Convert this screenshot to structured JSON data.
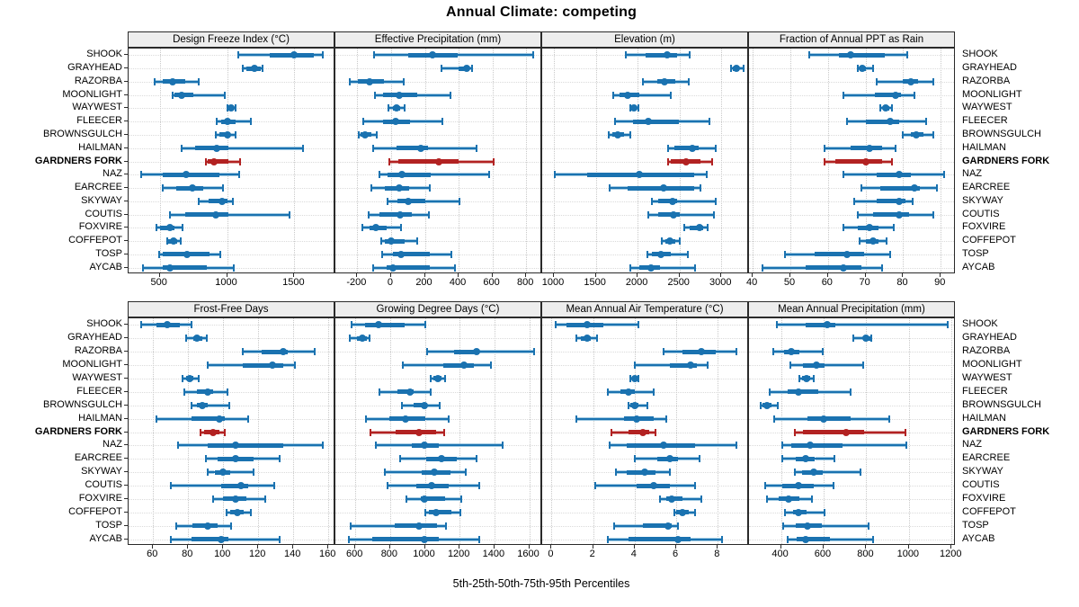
{
  "title": "Annual Climate: competing",
  "caption": "5th-25th-50th-75th-95th Percentiles",
  "percentile_labels": [
    "5th",
    "25th",
    "50th",
    "75th",
    "95th"
  ],
  "sites": [
    "SHOOK",
    "GRAYHEAD",
    "RAZORBA",
    "MOONLIGHT",
    "WAYWEST",
    "FLEECER",
    "BROWNSGULCH",
    "HAILMAN",
    "GARDNERS FORK",
    "NAZ",
    "EARCREE",
    "SKYWAY",
    "COUTIS",
    "FOXVIRE",
    "COFFEPOT",
    "TOSP",
    "AYCAB"
  ],
  "highlight_site": "GARDNERS FORK",
  "colors": {
    "series": "#1a72b0",
    "series_light": "#a3cbe3",
    "highlight": "#b22222",
    "highlight_light": "#dfa9a7",
    "grid": "#c9c9c9",
    "row_guide": "#dadada",
    "strip_bg": "#ededed",
    "border": "#2a2a2a"
  },
  "chart_data": {
    "type": "dotplot-interval",
    "orientation": "horizontal",
    "grid": "dotted",
    "legend_position": "none",
    "note": "Each row shows 5th-25th-50th-75th-95th percentiles: thin capped line 5th-95th, light band 5th-25th and 75th-95th, thick bar 25th-75th, dot at 50th",
    "panels": [
      {
        "key": "dfi",
        "title": "Design Freeze Index (°C)",
        "group": "top",
        "col": 0,
        "xlim": [
          268,
          1805
        ],
        "ticks": [
          500,
          1000,
          1500
        ],
        "values": [
          [
            1080,
            1320,
            1495,
            1645,
            1710
          ],
          [
            1120,
            1145,
            1205,
            1250,
            1265
          ],
          [
            465,
            520,
            595,
            690,
            790
          ],
          [
            595,
            610,
            665,
            750,
            980
          ],
          [
            1005,
            1010,
            1030,
            1050,
            1060
          ],
          [
            925,
            955,
            1005,
            1065,
            1180
          ],
          [
            915,
            945,
            1000,
            1020,
            1065
          ],
          [
            665,
            760,
            920,
            1010,
            1565
          ],
          [
            840,
            855,
            905,
            1010,
            1095
          ],
          [
            360,
            520,
            695,
            945,
            1090
          ],
          [
            520,
            620,
            740,
            820,
            970
          ],
          [
            790,
            865,
            960,
            1000,
            1045
          ],
          [
            575,
            690,
            915,
            1010,
            1465
          ],
          [
            475,
            505,
            575,
            610,
            670
          ],
          [
            555,
            565,
            600,
            630,
            655
          ],
          [
            495,
            520,
            705,
            870,
            950
          ],
          [
            375,
            520,
            575,
            850,
            1050
          ]
        ]
      },
      {
        "key": "ep",
        "title": "Effective Precipitation (mm)",
        "group": "top",
        "col": 1,
        "xlim": [
          -330,
          895
        ],
        "ticks": [
          -200,
          0,
          200,
          400,
          600,
          800
        ],
        "values": [
          [
            -100,
            100,
            245,
            395,
            840
          ],
          [
            300,
            400,
            445,
            465,
            480
          ],
          [
            -245,
            -195,
            -125,
            -40,
            75
          ],
          [
            -95,
            -50,
            50,
            155,
            350
          ],
          [
            -15,
            10,
            30,
            55,
            80
          ],
          [
            -165,
            -50,
            25,
            110,
            305
          ],
          [
            -190,
            -180,
            -155,
            -115,
            -85
          ],
          [
            -105,
            30,
            175,
            220,
            505
          ],
          [
            -10,
            45,
            280,
            400,
            605
          ],
          [
            -70,
            -20,
            65,
            235,
            580
          ],
          [
            -115,
            -35,
            50,
            105,
            230
          ],
          [
            -20,
            35,
            100,
            205,
            405
          ],
          [
            -135,
            -70,
            55,
            125,
            225
          ],
          [
            -170,
            -130,
            -90,
            -25,
            60
          ],
          [
            -60,
            -35,
            0,
            80,
            155
          ],
          [
            -55,
            10,
            60,
            230,
            355
          ],
          [
            -105,
            -25,
            10,
            230,
            380
          ]
        ]
      },
      {
        "key": "elev",
        "title": "Elevation (m)",
        "group": "top",
        "col": 2,
        "xlim": [
          860,
          3330
        ],
        "ticks": [
          1000,
          1500,
          2000,
          2500,
          3000
        ],
        "values": [
          [
            1860,
            2090,
            2350,
            2470,
            2625
          ],
          [
            3115,
            3140,
            3175,
            3215,
            3265
          ],
          [
            2065,
            2230,
            2320,
            2450,
            2610
          ],
          [
            1710,
            1785,
            1880,
            2025,
            2395
          ],
          [
            1915,
            1935,
            1960,
            1985,
            2005
          ],
          [
            1730,
            1950,
            2130,
            2490,
            2855
          ],
          [
            1655,
            1695,
            1765,
            1840,
            1915
          ],
          [
            2360,
            2435,
            2650,
            2730,
            2930
          ],
          [
            2360,
            2400,
            2580,
            2750,
            2890
          ],
          [
            1005,
            1395,
            2025,
            2670,
            2820
          ],
          [
            1665,
            1880,
            2305,
            2670,
            2755
          ],
          [
            2175,
            2250,
            2420,
            2470,
            2930
          ],
          [
            2130,
            2250,
            2430,
            2505,
            2910
          ],
          [
            2560,
            2620,
            2740,
            2785,
            2840
          ],
          [
            2285,
            2330,
            2385,
            2450,
            2505
          ],
          [
            2120,
            2175,
            2275,
            2395,
            2600
          ],
          [
            1915,
            2025,
            2155,
            2265,
            2690
          ]
        ]
      },
      {
        "key": "fr",
        "title": "Fraction of Annual PPT as Rain",
        "group": "top",
        "col": 3,
        "xlim": [
          39,
          94
        ],
        "ticks": [
          40,
          50,
          60,
          70,
          80,
          90
        ],
        "values": [
          [
            55,
            63,
            66,
            75,
            81
          ],
          [
            68,
            68.5,
            69.2,
            70.1,
            72
          ],
          [
            73,
            80,
            82,
            84,
            88
          ],
          [
            64,
            72.5,
            78,
            79.5,
            83
          ],
          [
            74,
            74.8,
            75.3,
            76.2,
            77
          ],
          [
            65,
            70,
            76.5,
            79,
            86
          ],
          [
            80,
            82,
            83.5,
            85.5,
            88
          ],
          [
            59,
            66,
            71,
            74.5,
            78
          ],
          [
            59,
            62,
            70,
            74.5,
            77
          ],
          [
            64,
            73,
            79,
            82,
            91
          ],
          [
            69,
            74,
            83,
            84.5,
            89
          ],
          [
            67,
            73,
            79,
            80.5,
            82.5
          ],
          [
            68,
            72,
            79,
            81.5,
            88
          ],
          [
            64,
            68,
            71,
            73.5,
            77.5
          ],
          [
            68.5,
            70,
            72,
            73.5,
            75.5
          ],
          [
            48.5,
            56.5,
            65,
            69.5,
            76.5
          ],
          [
            42.5,
            54,
            64,
            69,
            74.5
          ]
        ]
      },
      {
        "key": "ffd",
        "title": "Frost-Free Days",
        "group": "bottom",
        "col": 0,
        "xlim": [
          46,
          164
        ],
        "ticks": [
          60,
          80,
          100,
          120,
          140,
          160
        ],
        "values": [
          [
            53,
            62,
            68,
            75,
            82
          ],
          [
            79,
            83,
            85,
            88,
            90.5
          ],
          [
            111,
            122,
            134,
            137,
            152
          ],
          [
            91,
            111,
            128,
            134,
            141
          ],
          [
            77,
            79,
            81,
            83,
            86
          ],
          [
            78,
            85,
            91,
            94,
            102.5
          ],
          [
            82,
            85,
            88,
            91,
            103.5
          ],
          [
            62,
            82,
            98,
            101,
            114
          ],
          [
            87,
            89,
            94,
            98,
            101
          ],
          [
            74,
            91,
            107,
            134,
            157
          ],
          [
            90,
            97,
            107,
            117.5,
            132
          ],
          [
            91,
            95,
            100,
            104,
            117.5
          ],
          [
            70,
            99,
            110,
            114,
            129
          ],
          [
            94,
            100,
            107,
            113,
            124
          ],
          [
            102,
            104,
            108,
            111.5,
            116
          ],
          [
            73,
            82.5,
            91,
            97,
            104.5
          ],
          [
            70,
            82,
            99,
            103,
            132
          ]
        ]
      },
      {
        "key": "gdd",
        "title": "Growing Degree Days (°C)",
        "group": "bottom",
        "col": 1,
        "xlim": [
          485,
          1675
        ],
        "ticks": [
          600,
          800,
          1000,
          1200,
          1400,
          1600
        ],
        "values": [
          [
            580,
            655,
            735,
            885,
            1000
          ],
          [
            570,
            610,
            640,
            665,
            680
          ],
          [
            1015,
            1170,
            1295,
            1315,
            1630
          ],
          [
            875,
            1105,
            1225,
            1280,
            1380
          ],
          [
            1035,
            1050,
            1075,
            1095,
            1115
          ],
          [
            740,
            840,
            915,
            935,
            1035
          ],
          [
            870,
            935,
            995,
            1015,
            1085
          ],
          [
            660,
            795,
            890,
            1005,
            1135
          ],
          [
            685,
            830,
            965,
            1065,
            1110
          ],
          [
            720,
            925,
            995,
            1080,
            1445
          ],
          [
            855,
            1005,
            1095,
            1185,
            1295
          ],
          [
            770,
            980,
            1055,
            1145,
            1235
          ],
          [
            785,
            950,
            1040,
            1135,
            1315
          ],
          [
            895,
            975,
            995,
            1115,
            1210
          ],
          [
            1000,
            1025,
            1065,
            1150,
            1205
          ],
          [
            575,
            825,
            965,
            1070,
            1120
          ],
          [
            565,
            695,
            995,
            1080,
            1315
          ]
        ]
      },
      {
        "key": "maat",
        "title": "Mean Annual Air Temperature (°C)",
        "group": "bottom",
        "col": 2,
        "xlim": [
          -0.45,
          9.5
        ],
        "ticks": [
          0,
          2,
          4,
          6,
          8
        ],
        "values": [
          [
            0.2,
            0.7,
            1.7,
            2.5,
            4.2
          ],
          [
            1.2,
            1.4,
            1.7,
            1.9,
            2.2
          ],
          [
            5.4,
            6.3,
            7.2,
            7.9,
            8.9
          ],
          [
            4.0,
            5.7,
            6.7,
            7.0,
            7.5
          ],
          [
            3.8,
            3.9,
            4.0,
            4.1,
            4.2
          ],
          [
            2.7,
            3.3,
            3.7,
            4.0,
            4.9
          ],
          [
            3.7,
            3.8,
            4.0,
            4.2,
            4.6
          ],
          [
            1.2,
            3.5,
            4.1,
            4.9,
            5.5
          ],
          [
            2.9,
            3.7,
            4.4,
            4.7,
            5.0
          ],
          [
            2.8,
            3.6,
            5.4,
            6.9,
            8.9
          ],
          [
            4.0,
            5.1,
            5.7,
            6.1,
            7.1
          ],
          [
            3.1,
            3.6,
            4.5,
            5.0,
            5.7
          ],
          [
            2.1,
            4.1,
            4.9,
            5.7,
            6.9
          ],
          [
            5.2,
            5.5,
            5.8,
            6.3,
            7.2
          ],
          [
            5.9,
            6.0,
            6.3,
            6.6,
            6.9
          ],
          [
            3.0,
            4.4,
            5.6,
            5.8,
            6.1
          ],
          [
            2.7,
            3.7,
            6.1,
            6.7,
            8.2
          ]
        ]
      },
      {
        "key": "map",
        "title": "Mean Annual Precipitation (mm)",
        "group": "bottom",
        "col": 3,
        "xlim": [
          250,
          1220
        ],
        "ticks": [
          400,
          600,
          800,
          1000,
          1200
        ],
        "values": [
          [
            380,
            515,
            615,
            655,
            1180
          ],
          [
            740,
            785,
            800,
            820,
            825
          ],
          [
            365,
            415,
            450,
            485,
            595
          ],
          [
            445,
            505,
            565,
            605,
            785
          ],
          [
            485,
            500,
            520,
            535,
            555
          ],
          [
            345,
            430,
            480,
            575,
            725
          ],
          [
            305,
            315,
            335,
            355,
            385
          ],
          [
            370,
            525,
            600,
            725,
            910
          ],
          [
            465,
            505,
            705,
            790,
            985
          ],
          [
            405,
            450,
            535,
            690,
            990
          ],
          [
            405,
            470,
            515,
            560,
            650
          ],
          [
            465,
            500,
            555,
            595,
            775
          ],
          [
            325,
            405,
            480,
            555,
            645
          ],
          [
            335,
            390,
            435,
            485,
            545
          ],
          [
            420,
            455,
            480,
            520,
            605
          ],
          [
            410,
            470,
            525,
            590,
            810
          ],
          [
            430,
            475,
            515,
            630,
            830
          ]
        ]
      }
    ]
  }
}
